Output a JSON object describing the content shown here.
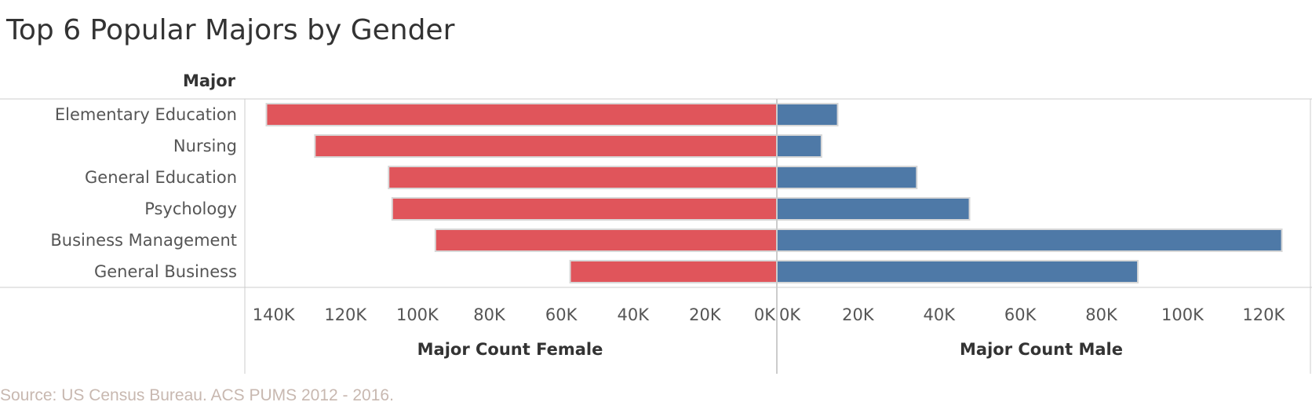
{
  "title": "Top 6 Popular Majors by Gender",
  "source": "Source: US Census Bureau. ACS PUMS 2012 - 2016.",
  "colors": {
    "female": "#e0555b",
    "male": "#4e79a7",
    "bar_stroke": "#d8d8d8",
    "grid": "#cccccc"
  },
  "chart_data": {
    "type": "bar",
    "orientation": "horizontal",
    "layout": "diverging",
    "row_header": "Major",
    "categories": [
      "Elementary Education",
      "Nursing",
      "General Education",
      "Psychology",
      "Business Management",
      "General Business"
    ],
    "series": [
      {
        "name": "Major Count Female",
        "values": [
          142000,
          128500,
          108000,
          107000,
          95000,
          57500
        ]
      },
      {
        "name": "Major Count Male",
        "values": [
          15000,
          11000,
          34500,
          47500,
          124500,
          89000
        ]
      }
    ],
    "female_axis": {
      "title": "Major Count Female",
      "ticks": [
        "140K",
        "120K",
        "100K",
        "80K",
        "60K",
        "40K",
        "20K",
        "0K"
      ],
      "tick_values": [
        140000,
        120000,
        100000,
        80000,
        60000,
        40000,
        20000,
        0
      ],
      "range": [
        0,
        148000
      ],
      "reversed": true
    },
    "male_axis": {
      "title": "Major Count Male",
      "ticks": [
        "0K",
        "20K",
        "40K",
        "60K",
        "80K",
        "100K",
        "120K"
      ],
      "tick_values": [
        0,
        20000,
        40000,
        60000,
        80000,
        100000,
        120000
      ],
      "range": [
        0,
        130000
      ]
    },
    "grid": false,
    "legend": "none"
  }
}
